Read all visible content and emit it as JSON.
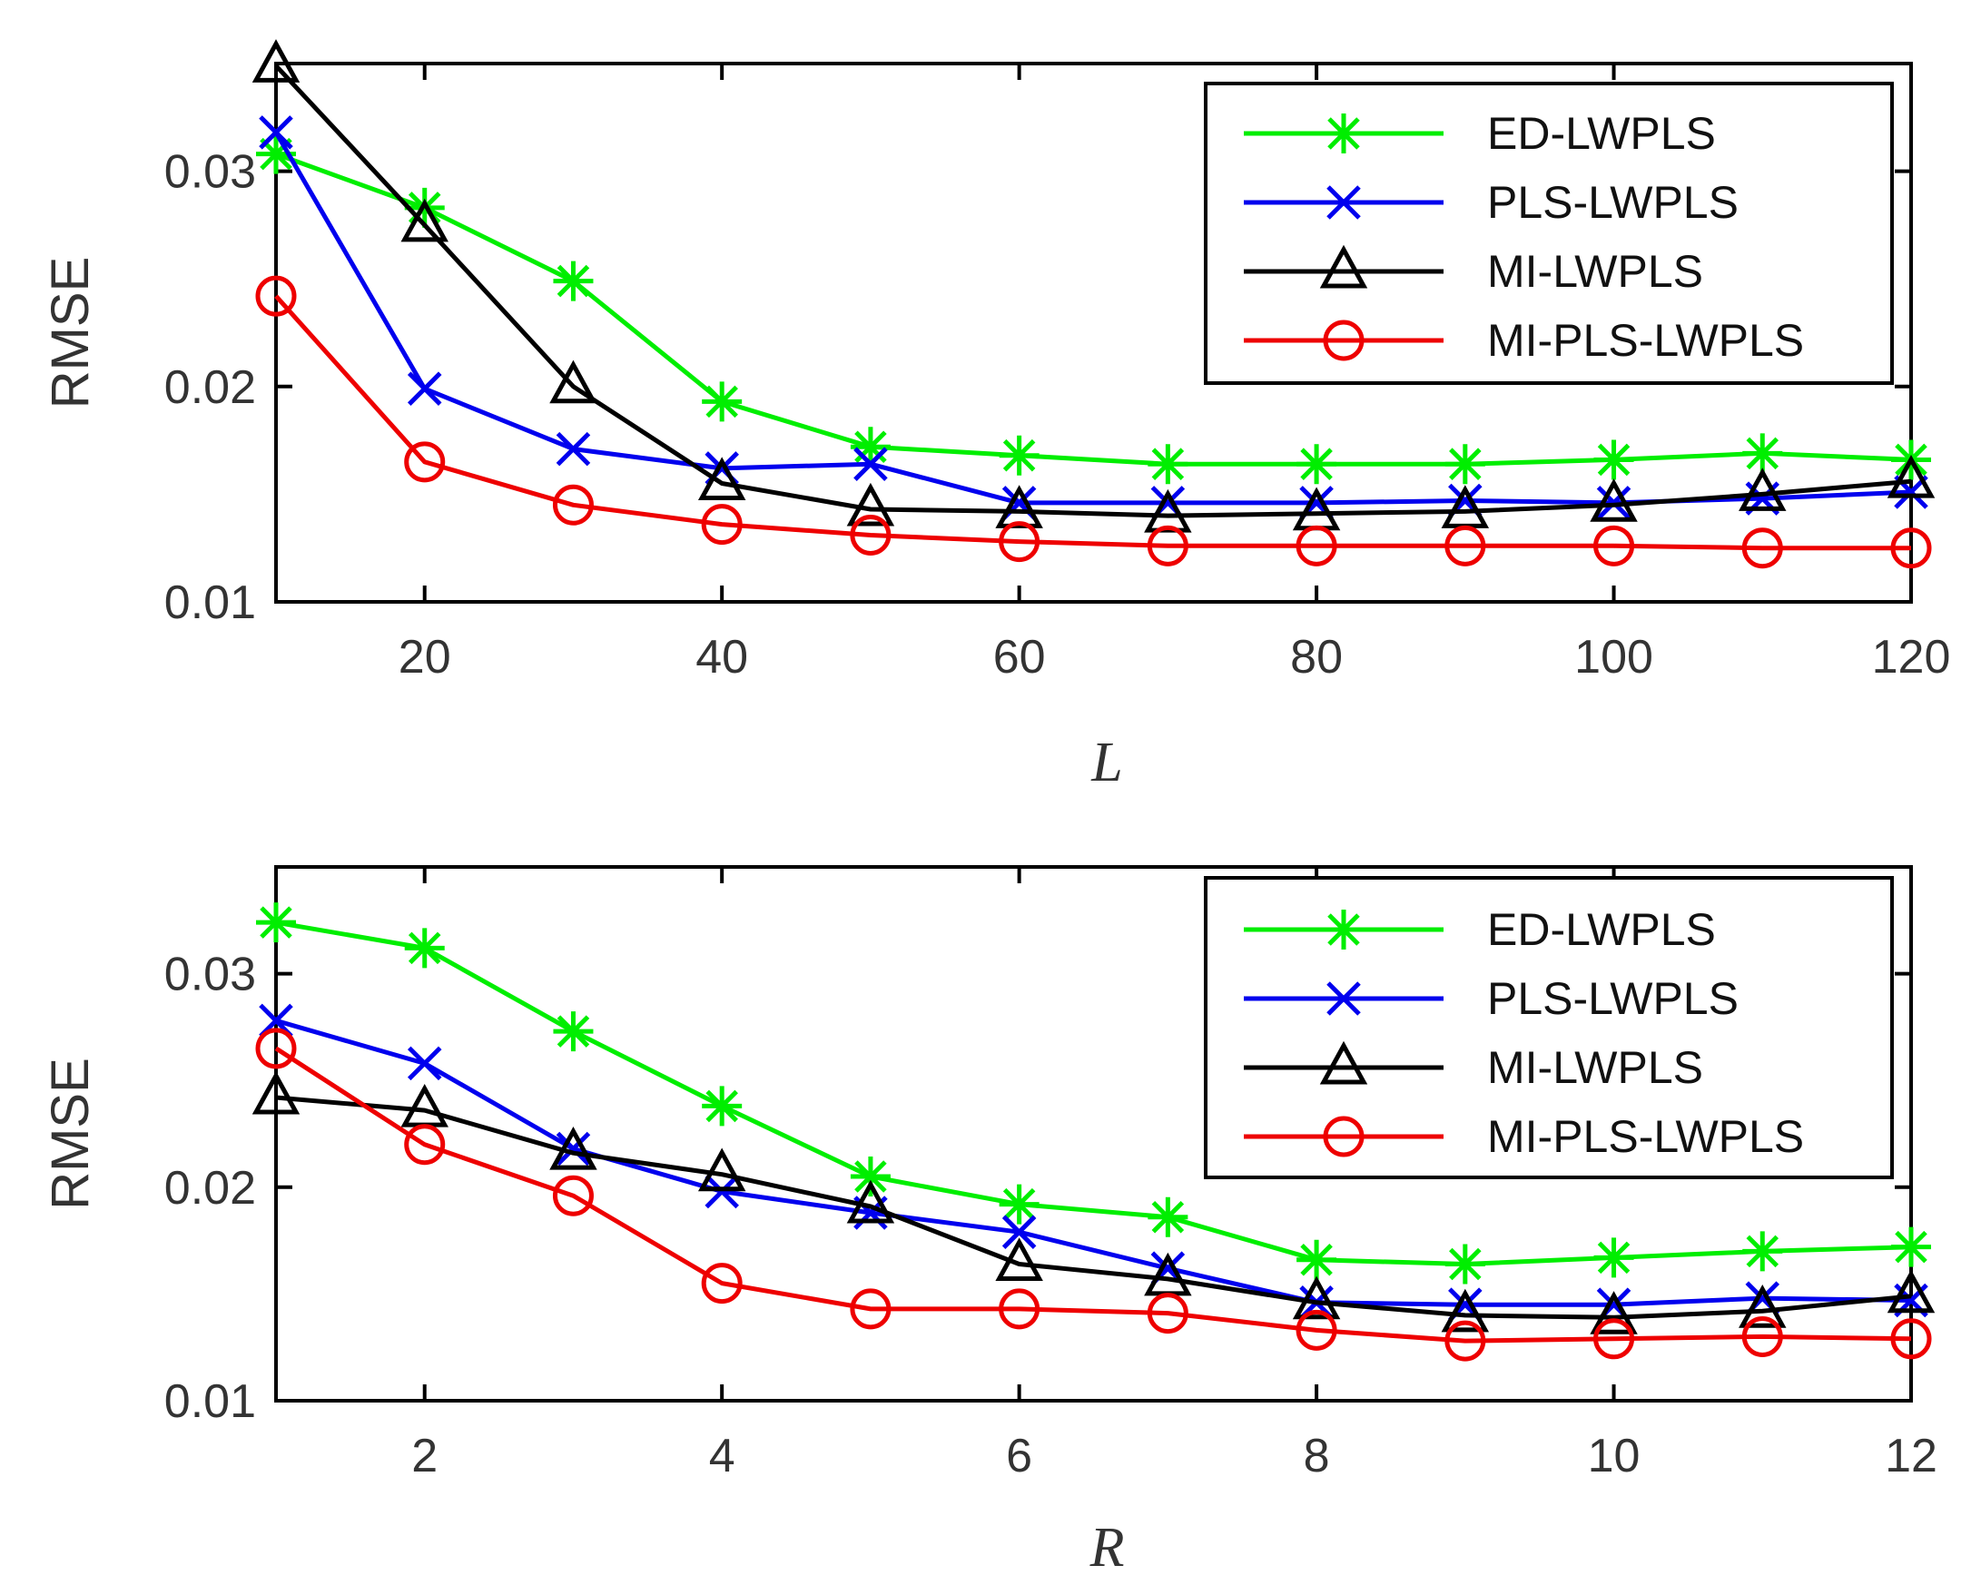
{
  "chart_data": [
    {
      "type": "line",
      "title": "",
      "xlabel": "L",
      "ylabel": "RMSE",
      "x": [
        10,
        20,
        30,
        40,
        50,
        60,
        70,
        80,
        90,
        100,
        110,
        120
      ],
      "xlim": [
        10,
        120
      ],
      "ylim": [
        0.01,
        0.035
      ],
      "xticks": [
        20,
        40,
        60,
        80,
        100,
        120
      ],
      "xtick_labels": [
        "20",
        "40",
        "60",
        "80",
        "100",
        "120"
      ],
      "yticks": [
        0.01,
        0.02,
        0.03
      ],
      "ytick_labels": [
        "0.01",
        "0.02",
        "0.03"
      ],
      "legend_position": "top-right",
      "series": [
        {
          "name": "ED-LWPLS",
          "color": "#00ee00",
          "marker": "asterisk",
          "values": [
            0.0308,
            0.0283,
            0.0249,
            0.0193,
            0.0172,
            0.0168,
            0.0164,
            0.0164,
            0.0164,
            0.0166,
            0.0169,
            0.0166
          ]
        },
        {
          "name": "PLS-LWPLS",
          "color": "#0000ee",
          "marker": "x",
          "values": [
            0.0318,
            0.0199,
            0.0171,
            0.0162,
            0.0164,
            0.0146,
            0.0146,
            0.0146,
            0.0147,
            0.0146,
            0.0148,
            0.0151
          ]
        },
        {
          "name": "MI-LWPLS",
          "color": "#000000",
          "marker": "triangle",
          "values": [
            0.0349,
            0.0275,
            0.02,
            0.0155,
            0.0143,
            0.0142,
            0.014,
            0.0141,
            0.0142,
            0.0145,
            0.015,
            0.0156
          ]
        },
        {
          "name": "MI-PLS-LWPLS",
          "color": "#ee0000",
          "marker": "circle",
          "values": [
            0.0242,
            0.0165,
            0.0145,
            0.0136,
            0.0131,
            0.0128,
            0.0126,
            0.0126,
            0.0126,
            0.0126,
            0.0125,
            0.0125
          ]
        }
      ]
    },
    {
      "type": "line",
      "title": "",
      "xlabel": "R",
      "ylabel": "RMSE",
      "x": [
        1,
        2,
        3,
        4,
        5,
        6,
        7,
        8,
        9,
        10,
        11,
        12
      ],
      "xlim": [
        1,
        12
      ],
      "ylim": [
        0.01,
        0.035
      ],
      "xticks": [
        2,
        4,
        6,
        8,
        10,
        12
      ],
      "xtick_labels": [
        "2",
        "4",
        "6",
        "8",
        "10",
        "12"
      ],
      "yticks": [
        0.01,
        0.02,
        0.03
      ],
      "ytick_labels": [
        "0.01",
        "0.02",
        "0.03"
      ],
      "legend_position": "top-right",
      "series": [
        {
          "name": "ED-LWPLS",
          "color": "#00ee00",
          "marker": "asterisk",
          "values": [
            0.0324,
            0.0312,
            0.0273,
            0.0238,
            0.0205,
            0.0192,
            0.0186,
            0.0166,
            0.0164,
            0.0167,
            0.017,
            0.0172
          ]
        },
        {
          "name": "PLS-LWPLS",
          "color": "#0000ee",
          "marker": "x",
          "values": [
            0.0278,
            0.0258,
            0.0218,
            0.0198,
            0.0188,
            0.0179,
            0.0162,
            0.0146,
            0.0145,
            0.0145,
            0.0148,
            0.0147
          ]
        },
        {
          "name": "MI-LWPLS",
          "color": "#000000",
          "marker": "triangle",
          "values": [
            0.0242,
            0.0236,
            0.0216,
            0.0206,
            0.0191,
            0.0164,
            0.0157,
            0.0146,
            0.014,
            0.0139,
            0.0142,
            0.0149
          ]
        },
        {
          "name": "MI-PLS-LWPLS",
          "color": "#ee0000",
          "marker": "circle",
          "values": [
            0.0265,
            0.022,
            0.0196,
            0.0155,
            0.0143,
            0.0143,
            0.0141,
            0.0133,
            0.0128,
            0.0129,
            0.013,
            0.0129
          ]
        }
      ]
    }
  ]
}
